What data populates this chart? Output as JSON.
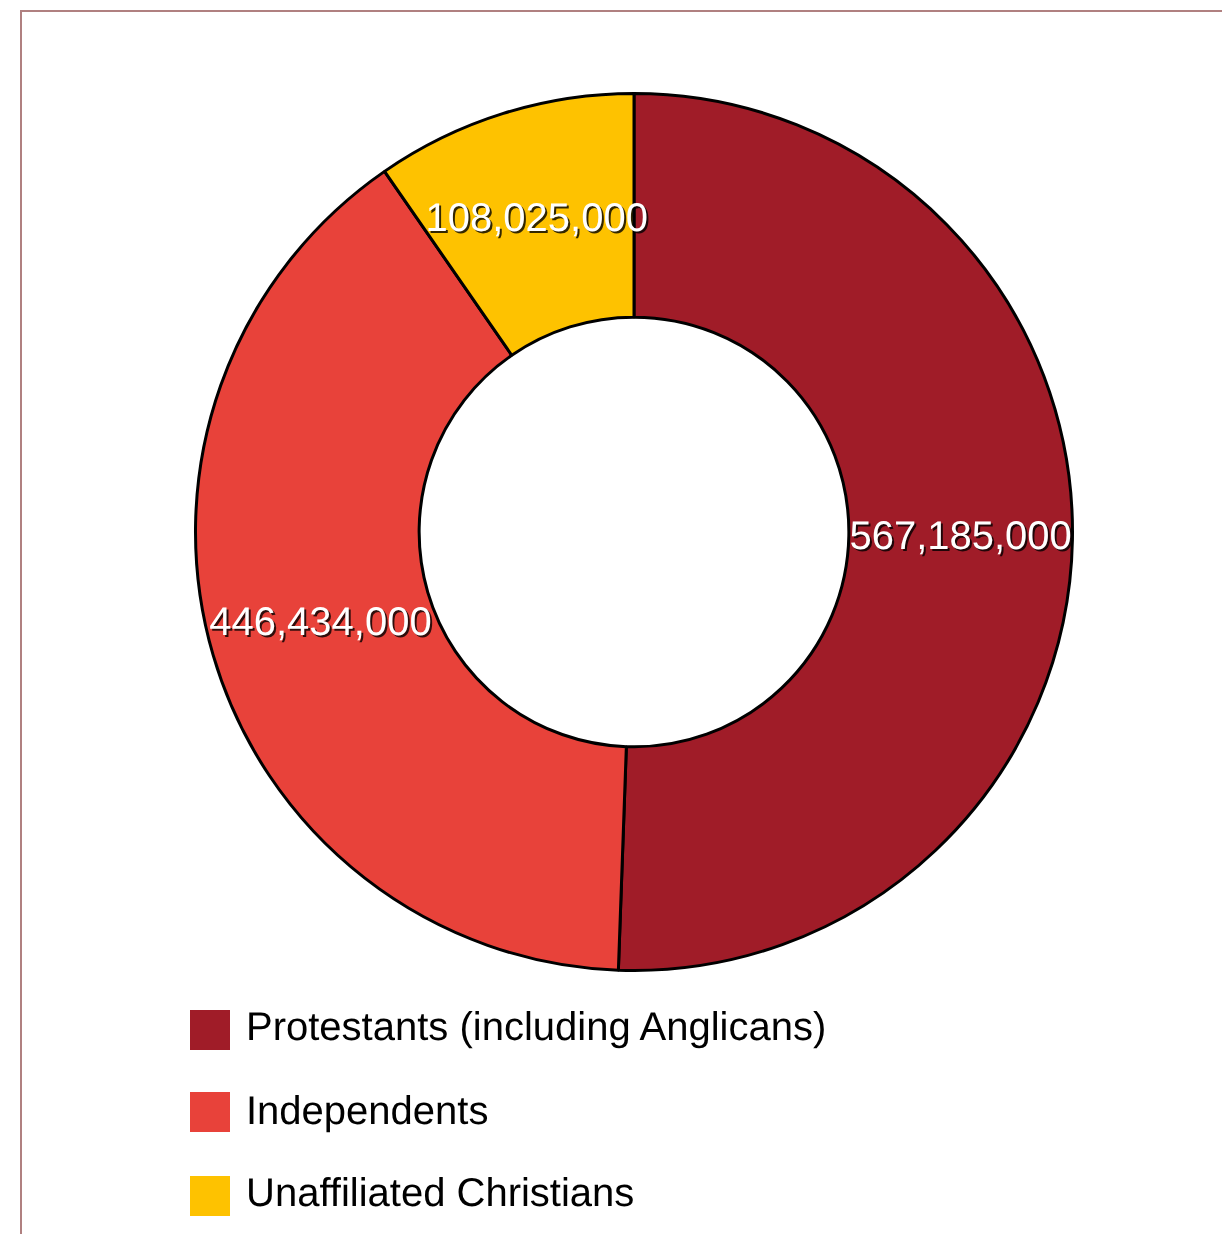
{
  "chart_data": {
    "type": "donut",
    "categories": [
      "Protestants (including Anglicans)",
      "Independents",
      "Unaffiliated Christians"
    ],
    "values": [
      567185000,
      446434000,
      108025000
    ],
    "colors": [
      "#a01c28",
      "#e8423a",
      "#fec200"
    ],
    "value_labels": [
      "567,185,000",
      "446,434,000",
      "108,025,000"
    ],
    "legend": "bottom"
  }
}
